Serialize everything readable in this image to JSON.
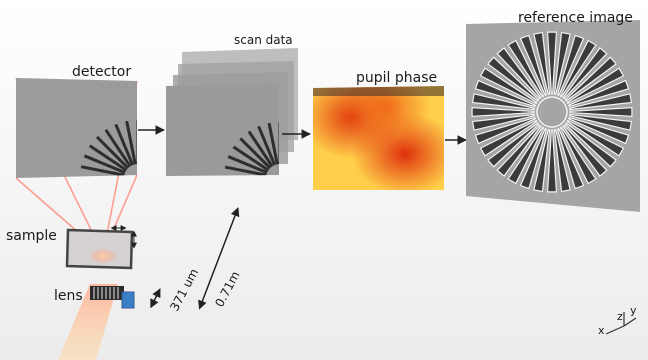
{
  "labels": {
    "detector": "detector",
    "scan_data": "scan data",
    "pupil_phase": "pupil phase",
    "reference_image": "reference image",
    "sample": "sample",
    "lens": "lens",
    "distance_small": "371 um",
    "distance_large": "0.71m",
    "axis_x": "x",
    "axis_y": "y",
    "axis_z": "z"
  },
  "colors": {
    "panel_gray": "#9a9a9a",
    "panel_dark": "#5d5d5d",
    "beam": "#ff7a6a",
    "phase_hot": "#e8360c",
    "phase_warm": "#ffcf4d",
    "lens_blue": "#3d7fc6"
  }
}
